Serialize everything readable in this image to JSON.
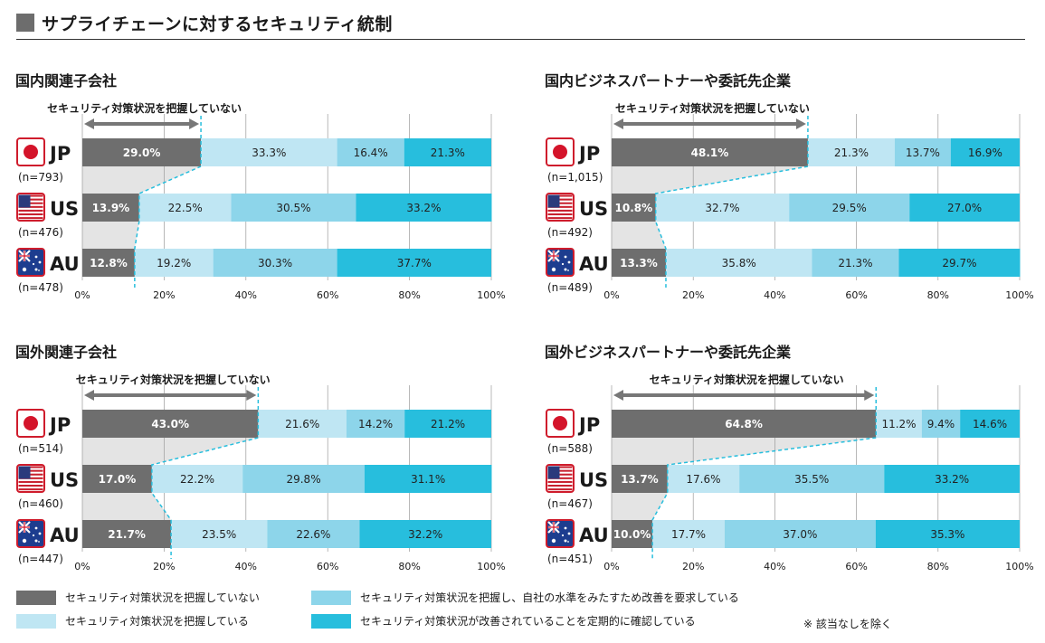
{
  "title": "サプライチェーンに対するセキュリティ統制",
  "colors": {
    "not_grasped": "#6e6e6e",
    "grasped": "#bfe6f3",
    "grasped_request": "#8dd5ea",
    "regularly_confirmed": "#27bedd",
    "gray_band": "#e4e4e4",
    "dash": "#27bedd"
  },
  "chart_data": [
    {
      "type": "bar",
      "orientation": "horizontal",
      "stacked": true,
      "title": "国内関連子会社",
      "annotation": "セキュリティ対策状況を把握していない",
      "categories": [
        {
          "code": "JP",
          "n": "(n=793)"
        },
        {
          "code": "US",
          "n": "(n=476)"
        },
        {
          "code": "AU",
          "n": "(n=478)"
        }
      ],
      "series": [
        {
          "name": "セキュリティ対策状況を把握していない",
          "values": [
            29.0,
            13.9,
            12.8
          ]
        },
        {
          "name": "セキュリティ対策状況を把握している",
          "values": [
            33.3,
            22.5,
            19.2
          ]
        },
        {
          "name": "セキュリティ対策状況を把握し、自社の水準をみたすため改善を要求している",
          "values": [
            16.4,
            30.5,
            30.3
          ]
        },
        {
          "name": "セキュリティ対策状況が改善されていることを定期的に確認している",
          "values": [
            21.3,
            33.2,
            37.7
          ]
        }
      ],
      "xlim": [
        0,
        100
      ],
      "xticks": [
        "0%",
        "20%",
        "40%",
        "60%",
        "80%",
        "100%"
      ]
    },
    {
      "type": "bar",
      "orientation": "horizontal",
      "stacked": true,
      "title": "国内ビジネスパートナーや委託先企業",
      "annotation": "セキュリティ対策状況を把握していない",
      "categories": [
        {
          "code": "JP",
          "n": "(n=1,015)"
        },
        {
          "code": "US",
          "n": "(n=492)"
        },
        {
          "code": "AU",
          "n": "(n=489)"
        }
      ],
      "series": [
        {
          "name": "セキュリティ対策状況を把握していない",
          "values": [
            48.1,
            10.8,
            13.3
          ]
        },
        {
          "name": "セキュリティ対策状況を把握している",
          "values": [
            21.3,
            32.7,
            35.8
          ]
        },
        {
          "name": "セキュリティ対策状況を把握し、自社の水準をみたすため改善を要求している",
          "values": [
            13.7,
            29.5,
            21.3
          ]
        },
        {
          "name": "セキュリティ対策状況が改善されていることを定期的に確認している",
          "values": [
            16.9,
            27.0,
            29.7
          ]
        }
      ],
      "xlim": [
        0,
        100
      ],
      "xticks": [
        "0%",
        "20%",
        "40%",
        "60%",
        "80%",
        "100%"
      ]
    },
    {
      "type": "bar",
      "orientation": "horizontal",
      "stacked": true,
      "title": "国外関連子会社",
      "annotation": "セキュリティ対策状況を把握していない",
      "categories": [
        {
          "code": "JP",
          "n": "(n=514)"
        },
        {
          "code": "US",
          "n": "(n=460)"
        },
        {
          "code": "AU",
          "n": "(n=447)"
        }
      ],
      "series": [
        {
          "name": "セキュリティ対策状況を把握していない",
          "values": [
            43.0,
            17.0,
            21.7
          ]
        },
        {
          "name": "セキュリティ対策状況を把握している",
          "values": [
            21.6,
            22.2,
            23.5
          ]
        },
        {
          "name": "セキュリティ対策状況を把握し、自社の水準をみたすため改善を要求している",
          "values": [
            14.2,
            29.8,
            22.6
          ]
        },
        {
          "name": "セキュリティ対策状況が改善されていることを定期的に確認している",
          "values": [
            21.2,
            31.1,
            32.2
          ]
        }
      ],
      "xlim": [
        0,
        100
      ],
      "xticks": [
        "0%",
        "20%",
        "40%",
        "60%",
        "80%",
        "100%"
      ]
    },
    {
      "type": "bar",
      "orientation": "horizontal",
      "stacked": true,
      "title": "国外ビジネスパートナーや委託先企業",
      "annotation": "セキュリティ対策状況を把握していない",
      "categories": [
        {
          "code": "JP",
          "n": "(n=588)"
        },
        {
          "code": "US",
          "n": "(n=467)"
        },
        {
          "code": "AU",
          "n": "(n=451)"
        }
      ],
      "series": [
        {
          "name": "セキュリティ対策状況を把握していない",
          "values": [
            64.8,
            13.7,
            10.0
          ]
        },
        {
          "name": "セキュリティ対策状況を把握している",
          "values": [
            11.2,
            17.6,
            17.7
          ]
        },
        {
          "name": "セキュリティ対策状況を把握し、自社の水準をみたすため改善を要求している",
          "values": [
            9.4,
            35.5,
            37.0
          ]
        },
        {
          "name": "セキュリティ対策状況が改善されていることを定期的に確認している",
          "values": [
            14.6,
            33.2,
            35.3
          ]
        }
      ],
      "xlim": [
        0,
        100
      ],
      "xticks": [
        "0%",
        "20%",
        "40%",
        "60%",
        "80%",
        "100%"
      ]
    }
  ],
  "legend": [
    {
      "label": "セキュリティ対策状況を把握していない",
      "color": "#6e6e6e"
    },
    {
      "label": "セキュリティ対策状況を把握し、自社の水準をみたすため改善を要求している",
      "color": "#8dd5ea"
    },
    {
      "label": "セキュリティ対策状況を把握している",
      "color": "#bfe6f3"
    },
    {
      "label": "セキュリティ対策状況が改善されていることを定期的に確認している",
      "color": "#27bedd"
    }
  ],
  "footnote": "※ 該当なしを除く"
}
